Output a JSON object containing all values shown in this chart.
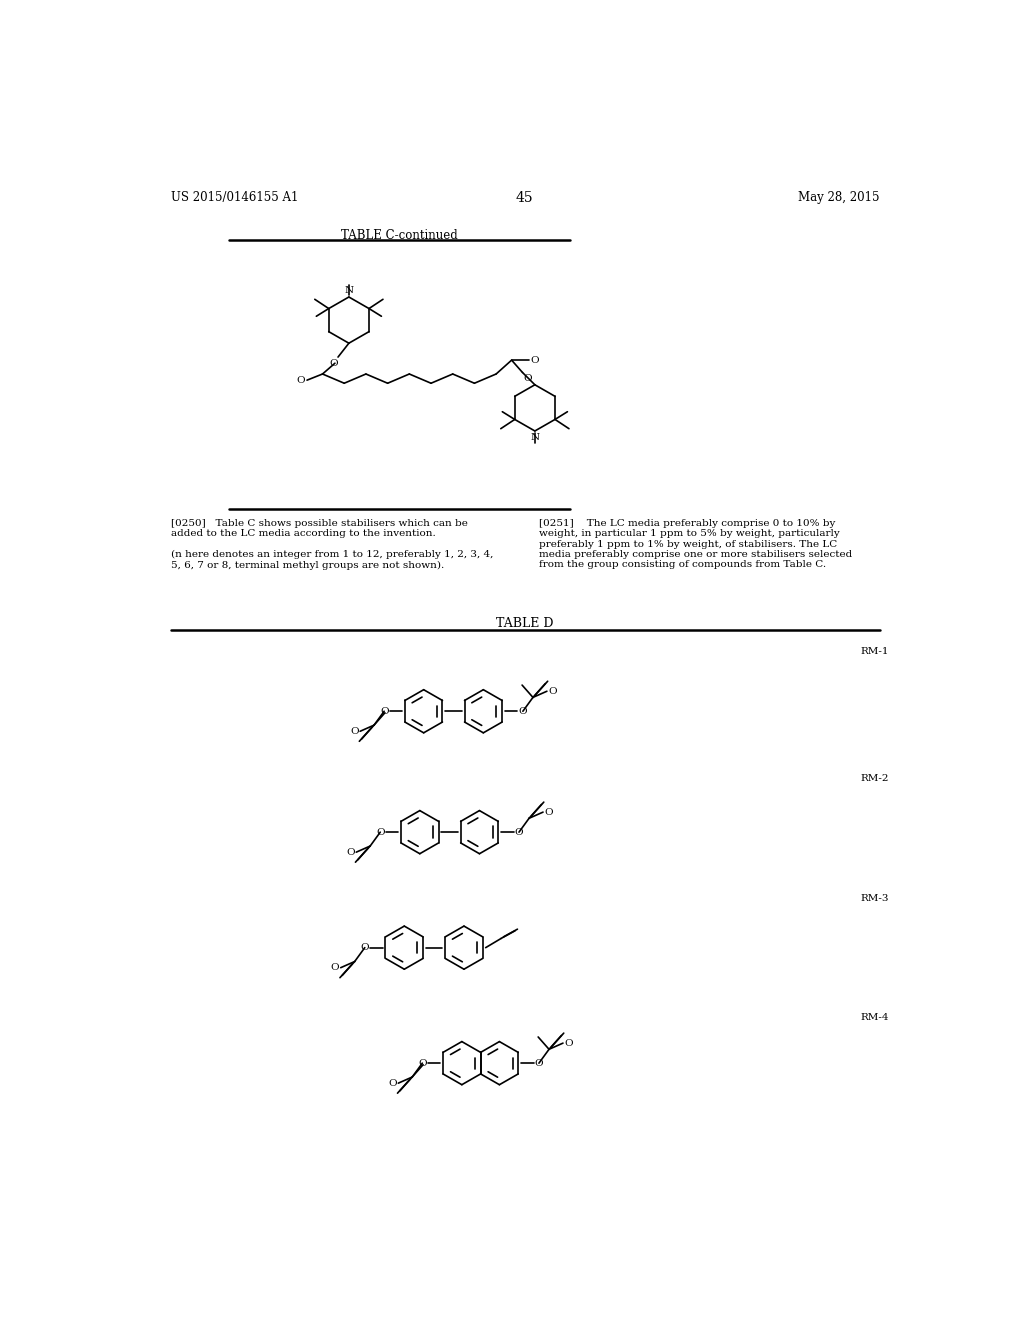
{
  "bg_color": "#ffffff",
  "header_left": "US 2015/0146155 A1",
  "header_right": "May 28, 2015",
  "page_number": "45",
  "table_c_title": "TABLE C-continued",
  "table_d_title": "TABLE D",
  "rm_labels": [
    "RM-1",
    "RM-2",
    "RM-3",
    "RM-4"
  ],
  "para_0250": "[0250]   Table C shows possible stabilisers which can be\nadded to the LC media according to the invention.\n\n(n here denotes an integer from 1 to 12, preferably 1, 2, 3, 4,\n5, 6, 7 or 8, terminal methyl groups are not shown).",
  "para_0251": "[0251]    The LC media preferably comprise 0 to 10% by\nweight, in particular 1 ppm to 5% by weight, particularly\npreferably 1 ppm to 1% by weight, of stabilisers. The LC\nmedia preferably comprise one or more stabilisers selected\nfrom the group consisting of compounds from Table C."
}
